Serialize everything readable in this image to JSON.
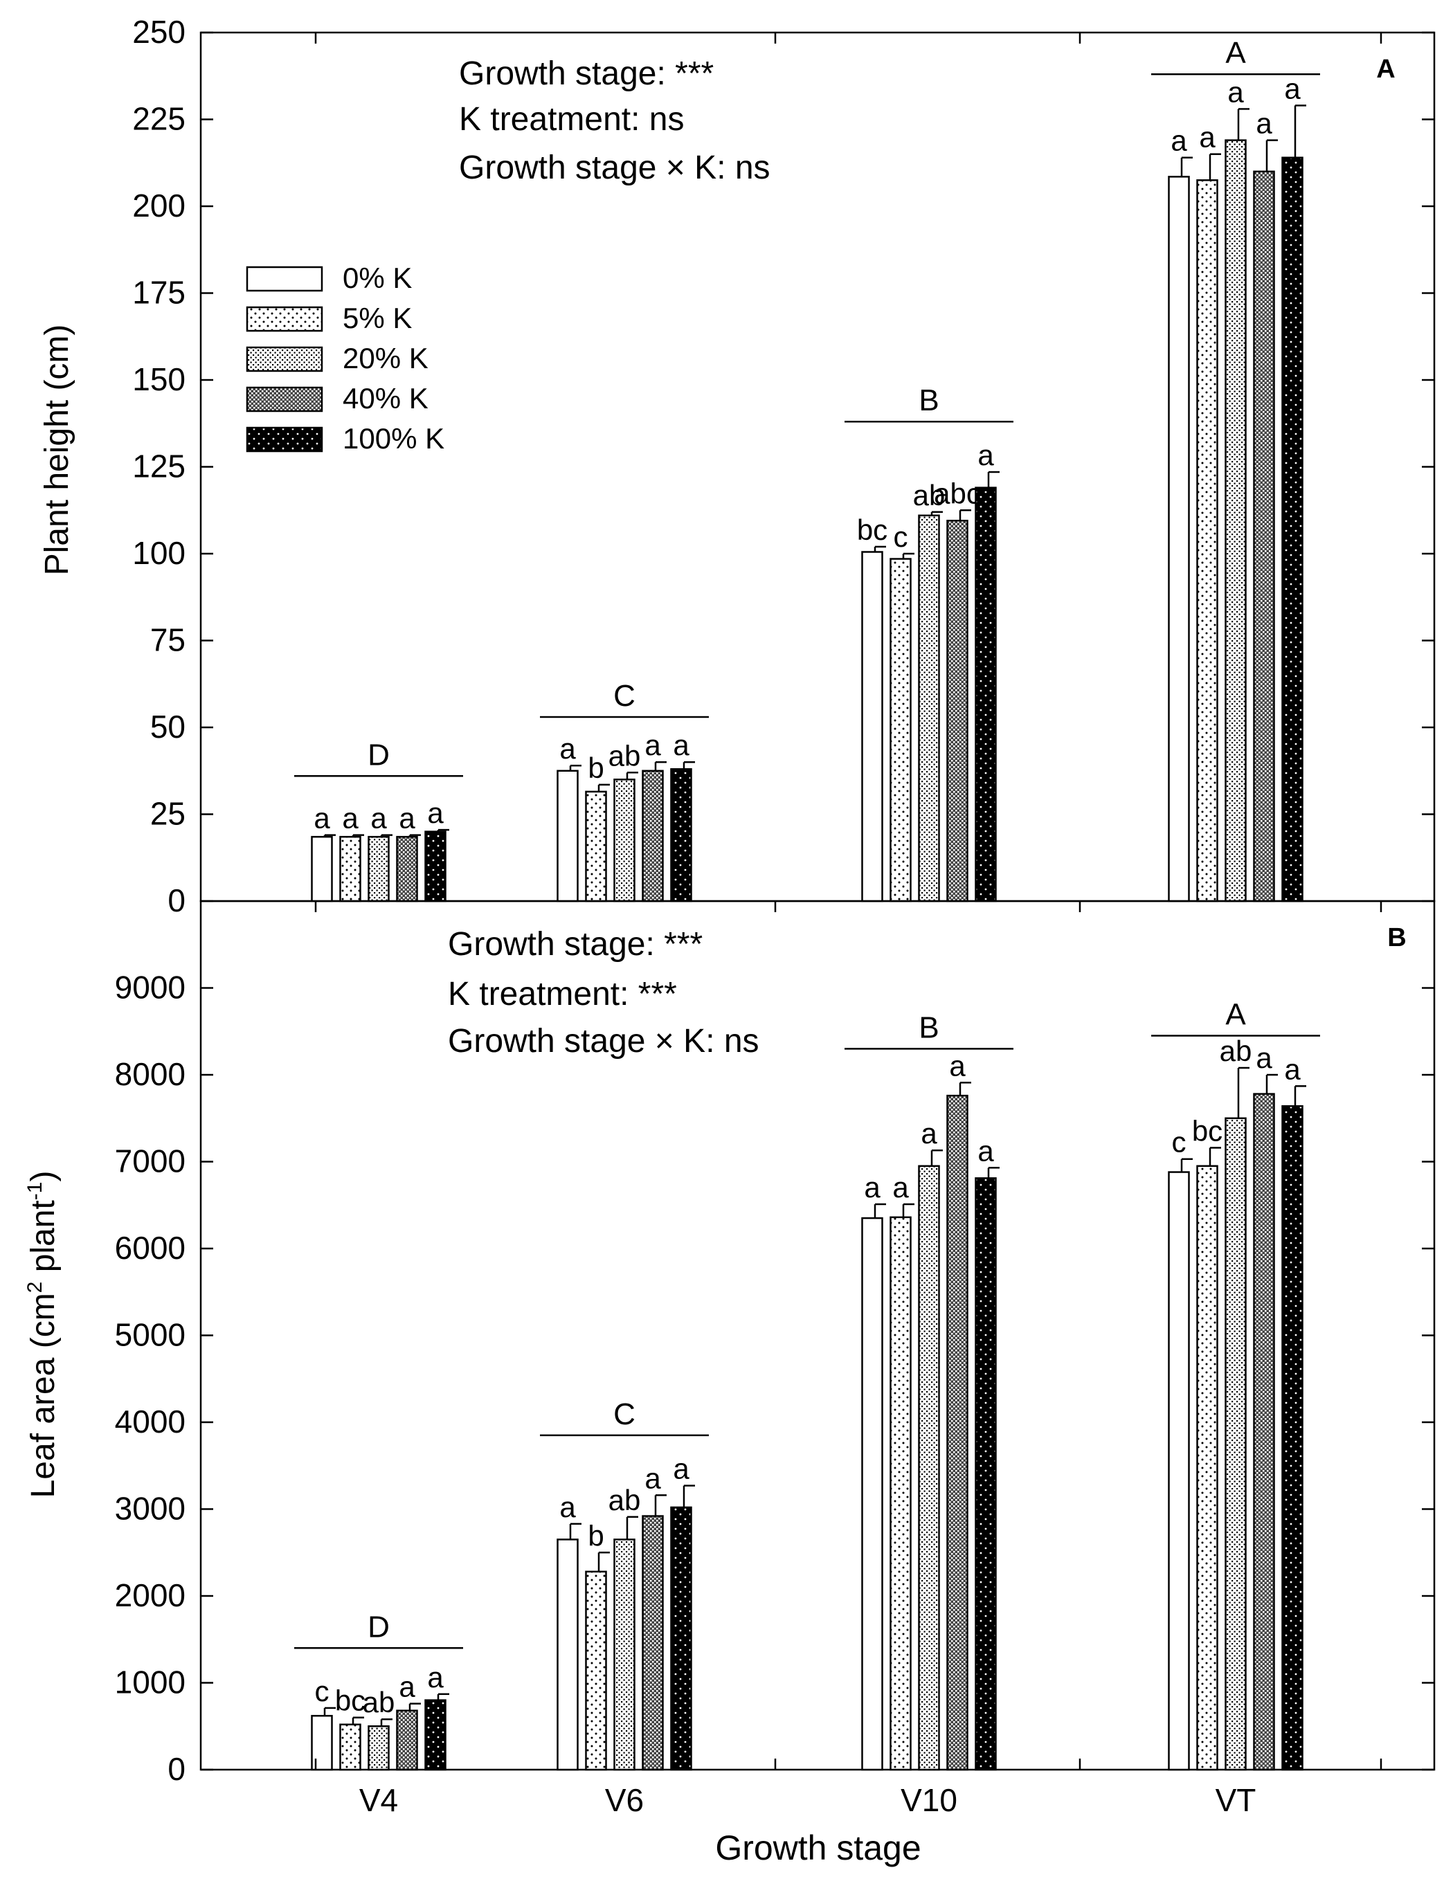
{
  "figure": {
    "xlabel": "Growth stage",
    "categories": [
      "V4",
      "V6",
      "V10",
      "VT"
    ],
    "legend": [
      "0% K",
      "5% K",
      "20% K",
      "40% K",
      "100% K"
    ]
  },
  "chart_data": [
    {
      "type": "bar",
      "panel": "A",
      "title": "",
      "xlabel": "Growth stage",
      "ylabel": "Plant height (cm)",
      "ylim": [
        0,
        250
      ],
      "yticks": [
        0,
        25,
        50,
        75,
        100,
        125,
        150,
        175,
        200,
        225,
        250
      ],
      "categories": [
        "V4",
        "V6",
        "V10",
        "VT"
      ],
      "series": [
        {
          "name": "0% K",
          "values": [
            18.5,
            37.5,
            100.5,
            208.5
          ],
          "errors": [
            0.5,
            1.5,
            1.5,
            5.5
          ],
          "letters": [
            "a",
            "a",
            "bc",
            "a"
          ]
        },
        {
          "name": "5% K",
          "values": [
            18.5,
            31.5,
            98.5,
            207.5
          ],
          "errors": [
            0.5,
            2.0,
            1.5,
            7.5
          ],
          "letters": [
            "a",
            "b",
            "c",
            "a"
          ]
        },
        {
          "name": "20% K",
          "values": [
            18.5,
            35.0,
            111.0,
            219.0
          ],
          "errors": [
            0.5,
            2.0,
            1.0,
            9.0
          ],
          "letters": [
            "a",
            "ab",
            "ab",
            "a"
          ]
        },
        {
          "name": "40% K",
          "values": [
            18.5,
            37.5,
            109.5,
            210.0
          ],
          "errors": [
            0.5,
            2.5,
            3.0,
            9.0
          ],
          "letters": [
            "a",
            "a",
            "abc",
            "a"
          ]
        },
        {
          "name": "100% K",
          "values": [
            20.0,
            38.0,
            119.0,
            214.0
          ],
          "errors": [
            0.5,
            2.0,
            4.5,
            15.0
          ],
          "letters": [
            "a",
            "a",
            "a",
            "a"
          ]
        }
      ],
      "group_letters": [
        "D",
        "C",
        "B",
        "A"
      ],
      "annotations": [
        "Growth stage: ***",
        "K treatment: ns",
        "Growth stage × K: ns"
      ],
      "legend": "upper-left"
    },
    {
      "type": "bar",
      "panel": "B",
      "title": "",
      "xlabel": "Growth stage",
      "ylabel_main": "Leaf area (cm",
      "ylabel_sup1": "2",
      "ylabel_mid": " plant",
      "ylabel_sup2": "-1",
      "ylabel_end": ")",
      "ylim": [
        0,
        10000
      ],
      "yticks": [
        0,
        1000,
        2000,
        3000,
        4000,
        5000,
        6000,
        7000,
        8000,
        9000
      ],
      "categories": [
        "V4",
        "V6",
        "V10",
        "VT"
      ],
      "series": [
        {
          "name": "0% K",
          "values": [
            620,
            2650,
            6350,
            6880
          ],
          "errors": [
            90,
            180,
            160,
            150
          ],
          "letters": [
            "c",
            "a",
            "a",
            "c"
          ]
        },
        {
          "name": "5% K",
          "values": [
            520,
            2280,
            6360,
            6950
          ],
          "errors": [
            80,
            220,
            150,
            210
          ],
          "letters": [
            "bc",
            "b",
            "a",
            "bc"
          ]
        },
        {
          "name": "20% K",
          "values": [
            500,
            2650,
            6950,
            7500
          ],
          "errors": [
            80,
            260,
            180,
            580
          ],
          "letters": [
            "ab",
            "ab",
            "a",
            "ab"
          ]
        },
        {
          "name": "40% K",
          "values": [
            680,
            2920,
            7760,
            7780
          ],
          "errors": [
            80,
            240,
            150,
            220
          ],
          "letters": [
            "a",
            "a",
            "a",
            "a"
          ]
        },
        {
          "name": "100% K",
          "values": [
            800,
            3020,
            6810,
            7640
          ],
          "errors": [
            70,
            250,
            120,
            230
          ],
          "letters": [
            "a",
            "a",
            "a",
            "a"
          ]
        }
      ],
      "group_letters": [
        "D",
        "C",
        "B",
        "A"
      ],
      "annotations": [
        "Growth stage: ***",
        "K treatment: ***",
        "Growth stage × K: ns"
      ]
    }
  ]
}
